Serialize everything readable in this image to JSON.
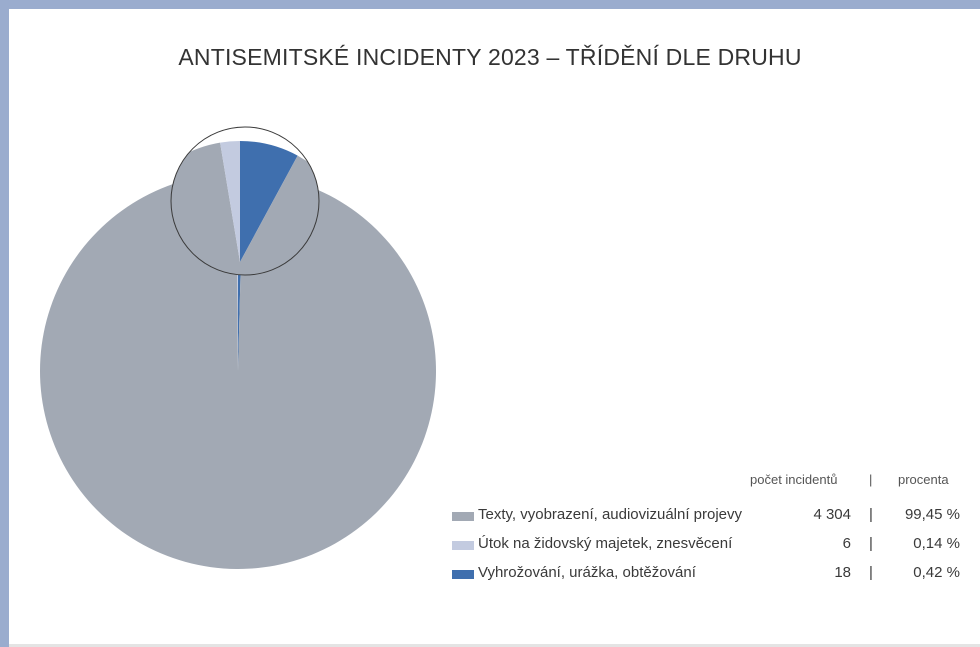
{
  "chart_data": {
    "type": "pie",
    "title": "ANTISEMITSKÉ INCIDENTY 2023 – TŘÍDĚNÍ DLE DRUHU",
    "legend_header": {
      "count": "počet incidentů",
      "separator": "|",
      "percent": "procenta"
    },
    "slices": [
      {
        "label": "Texty, vyobrazení, audiovizuální projevy",
        "value": 4304,
        "percent": "99,45 %",
        "color": "#a2a9b4"
      },
      {
        "label": "Útok na židovský majetek, znesvěcení",
        "value": 6,
        "percent": "0,14 %",
        "color": "#c3cbe0"
      },
      {
        "label": "Vyhrožování, urážka, obtěžování",
        "value": 18,
        "percent": "0,42 %",
        "color": "#3f6fae"
      }
    ],
    "legend_placement": "bottom-right",
    "zoom_inset": true
  }
}
